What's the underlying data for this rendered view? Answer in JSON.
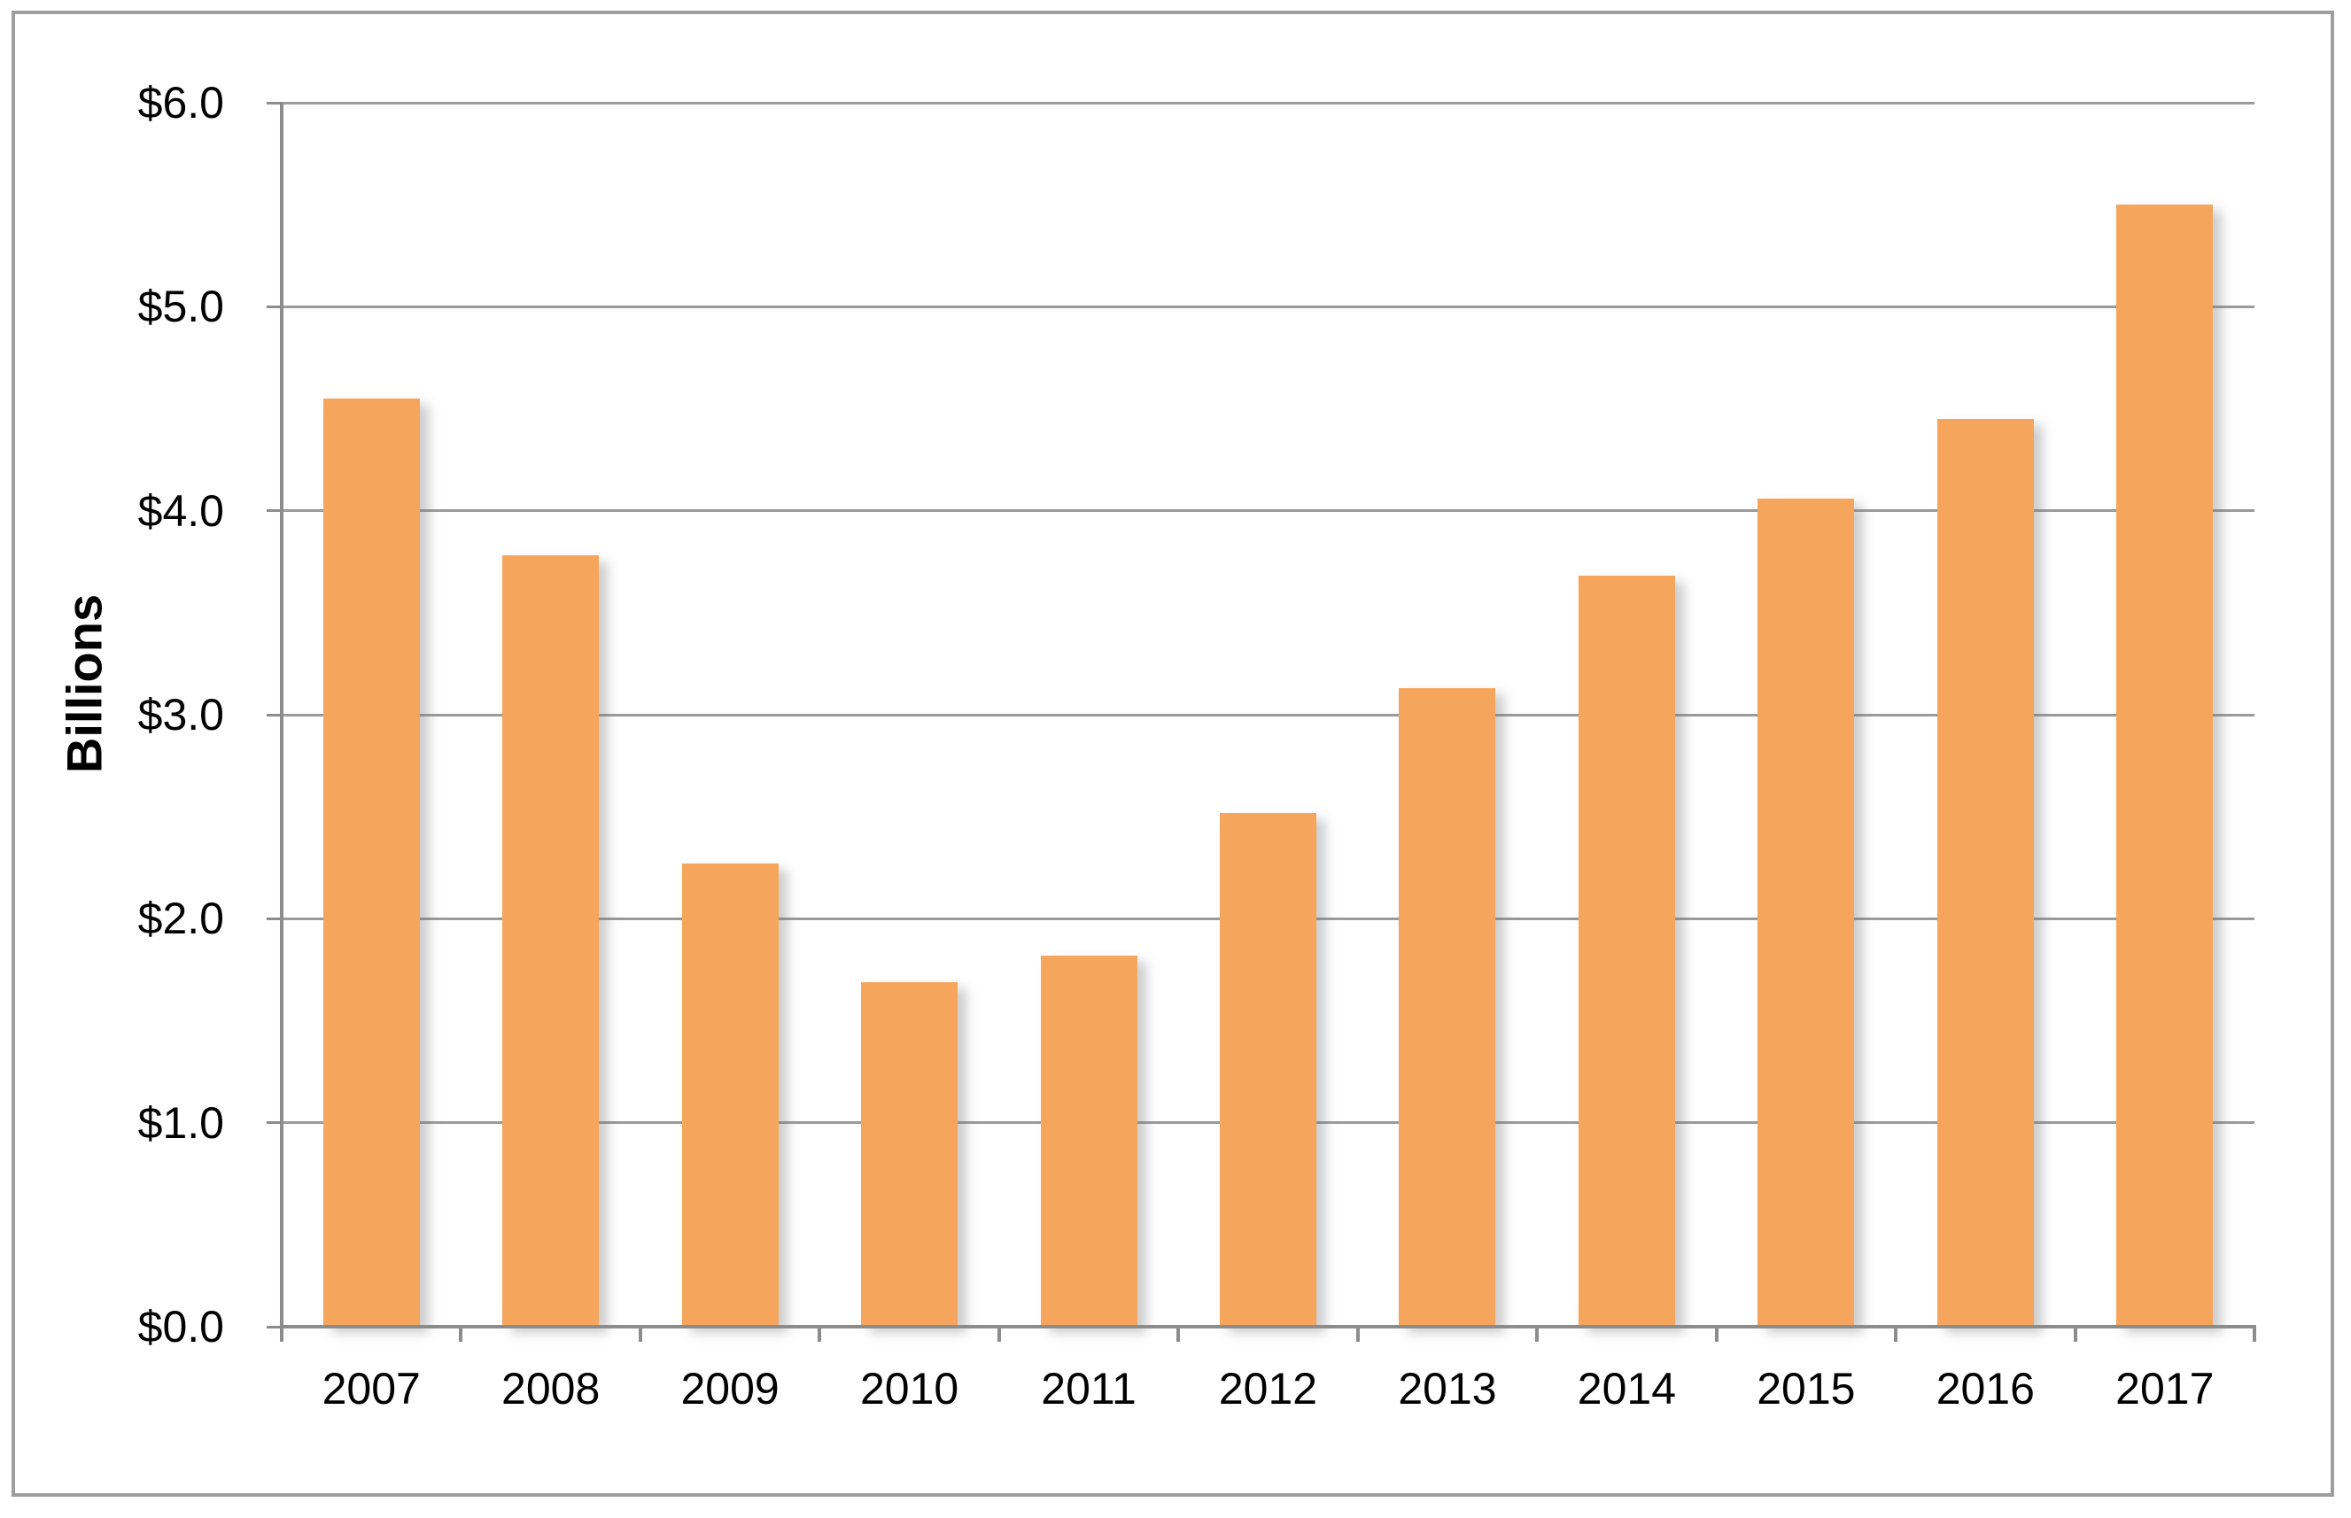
{
  "chart_data": {
    "type": "bar",
    "title": "",
    "xlabel": "",
    "ylabel": "Billions",
    "categories": [
      "2007",
      "2008",
      "2009",
      "2010",
      "2011",
      "2012",
      "2013",
      "2014",
      "2015",
      "2016",
      "2017"
    ],
    "values": [
      4.55,
      3.78,
      2.27,
      1.69,
      1.82,
      2.52,
      3.13,
      3.68,
      4.06,
      4.45,
      5.5
    ],
    "ylim": [
      0,
      6
    ],
    "ytick_step": 1,
    "ytick_labels": [
      "$0.0",
      "$1.0",
      "$2.0",
      "$3.0",
      "$4.0",
      "$5.0",
      "$6.0"
    ],
    "grid": true,
    "legend": "none",
    "colors": {
      "bar": "#F6A65C",
      "gridline": "#9B9B9B",
      "axis": "#8C8C8C",
      "border_frame": "#9E9E9E",
      "text": "#000000"
    }
  }
}
